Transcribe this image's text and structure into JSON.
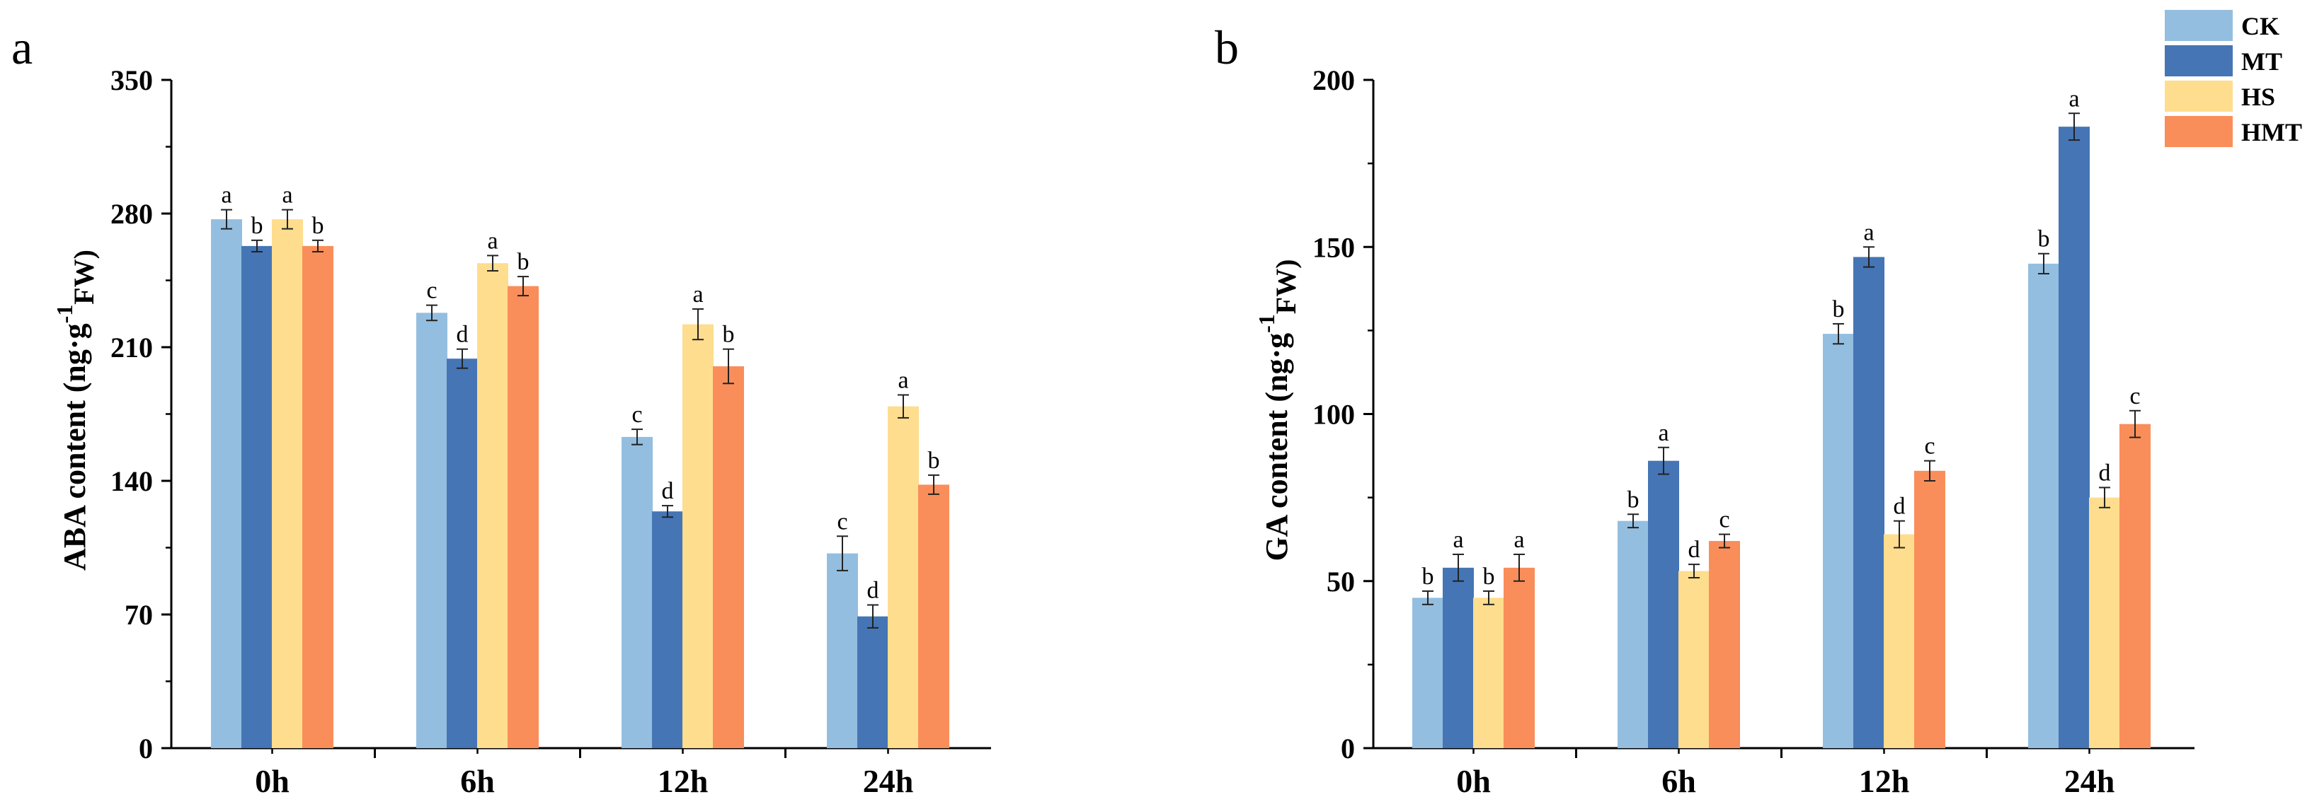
{
  "chart_data": [
    {
      "panel": "a",
      "type": "bar",
      "ylabel": "ABA content (ng·g",
      "ylabel_sup": "-1",
      "ylabel_sub": "FW)",
      "ylabel_close": ")",
      "ylim": [
        0,
        350
      ],
      "yticks": [
        0,
        70,
        140,
        210,
        280,
        350
      ],
      "categories": [
        "0h",
        "6h",
        "12h",
        "24h"
      ],
      "series": [
        {
          "name": "CK",
          "color": "#94bedf",
          "values": [
            277,
            228,
            163,
            102
          ],
          "errors": [
            5,
            4,
            4,
            9
          ],
          "letters": [
            "a",
            "c",
            "c",
            "c"
          ]
        },
        {
          "name": "MT",
          "color": "#4575b5",
          "values": [
            263,
            204,
            124,
            69
          ],
          "errors": [
            3,
            5,
            3,
            6
          ],
          "letters": [
            "b",
            "d",
            "d",
            "d"
          ]
        },
        {
          "name": "HS",
          "color": "#fedd8e",
          "values": [
            277,
            254,
            222,
            179
          ],
          "errors": [
            5,
            4,
            8,
            6
          ],
          "letters": [
            "a",
            "a",
            "a",
            "a"
          ]
        },
        {
          "name": "HMT",
          "color": "#f98e5a",
          "values": [
            263,
            242,
            200,
            138
          ],
          "errors": [
            3,
            5,
            9,
            5
          ],
          "letters": [
            "b",
            "b",
            "b",
            "b"
          ]
        }
      ],
      "grid": false
    },
    {
      "panel": "b",
      "type": "bar",
      "ylabel": "GA content (ng·g",
      "ylabel_sup": "-1",
      "ylabel_sub": "FW)",
      "ylabel_close": ")",
      "ylim": [
        0,
        200
      ],
      "yticks": [
        0,
        50,
        100,
        150,
        200
      ],
      "categories": [
        "0h",
        "6h",
        "12h",
        "24h"
      ],
      "series": [
        {
          "name": "CK",
          "color": "#94bedf",
          "values": [
            45,
            68,
            124,
            145
          ],
          "errors": [
            2,
            2,
            3,
            3
          ],
          "letters": [
            "b",
            "b",
            "b",
            "b"
          ]
        },
        {
          "name": "MT",
          "color": "#4575b5",
          "values": [
            54,
            86,
            147,
            186
          ],
          "errors": [
            4,
            4,
            3,
            4
          ],
          "letters": [
            "a",
            "a",
            "a",
            "a"
          ]
        },
        {
          "name": "HS",
          "color": "#fedd8e",
          "values": [
            45,
            53,
            64,
            75
          ],
          "errors": [
            2,
            2,
            4,
            3
          ],
          "letters": [
            "b",
            "d",
            "d",
            "d"
          ]
        },
        {
          "name": "HMT",
          "color": "#f98e5a",
          "values": [
            54,
            62,
            83,
            97
          ],
          "errors": [
            4,
            2,
            3,
            4
          ],
          "letters": [
            "a",
            "c",
            "c",
            "c"
          ]
        }
      ],
      "grid": false,
      "legend_position": "top-right"
    }
  ]
}
